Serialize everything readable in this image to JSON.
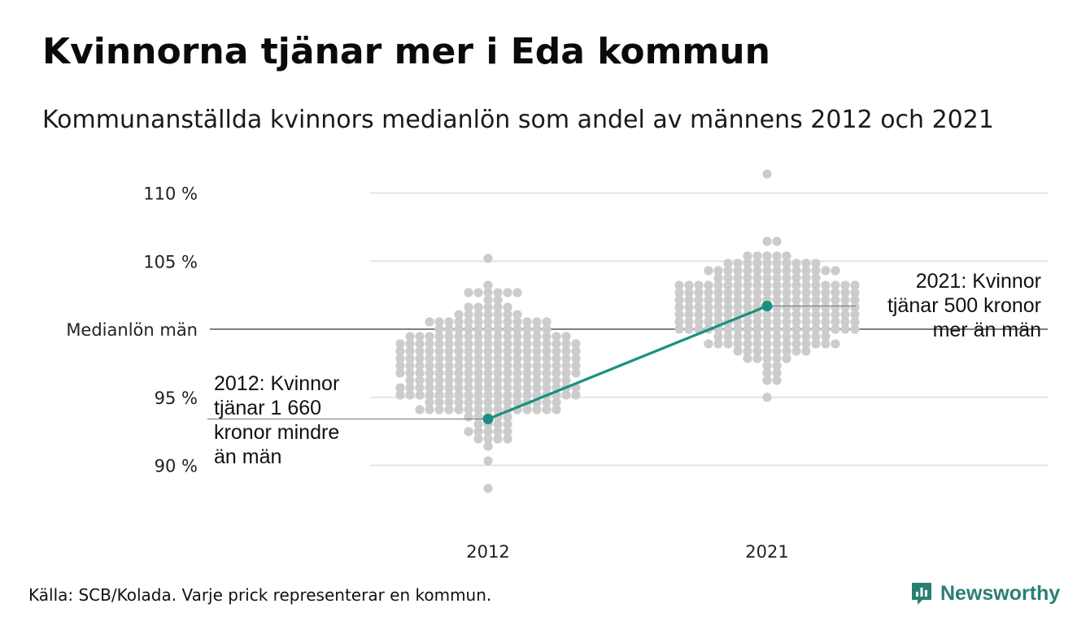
{
  "header": {
    "title": "Kvinnorna tjänar mer i Eda kommun",
    "subtitle": "Kommunanställda kvinnors medianlön som andel av männens 2012 och 2021"
  },
  "footer": {
    "source": "Källa: SCB/Kolada. Varje prick representerar en kommun.",
    "logo_text": "Newsworthy"
  },
  "colors": {
    "highlight": "#1a9080",
    "dots": "#cccccc",
    "grid": "#e4e4e4",
    "reference": "#333333",
    "logo": "#2a7f72"
  },
  "chart_data": {
    "type": "scatter",
    "title": "Kvinnorna tjänar mer i Eda kommun",
    "subtitle": "Kommunanställda kvinnors medianlön som andel av männens 2012 och 2021",
    "categories": [
      "2012",
      "2021"
    ],
    "yticks": [
      {
        "value": 110,
        "label": "110 %"
      },
      {
        "value": 105,
        "label": "105 %"
      },
      {
        "value": 100,
        "label": "Medianlön män"
      },
      {
        "value": 95,
        "label": "95 %"
      },
      {
        "value": 90,
        "label": "90 %"
      }
    ],
    "ylim": [
      86.5,
      111.5
    ],
    "reference_line": 100,
    "grid": true,
    "distributions": [
      {
        "category": "2012",
        "center": 97.5,
        "spread": 2.3,
        "min": 88.3,
        "max": 105.2
      },
      {
        "category": "2021",
        "center": 101.5,
        "spread": 2.0,
        "min": 95.0,
        "max": 111.4
      }
    ],
    "series": [
      {
        "name": "Eda kommun",
        "values": [
          93.4,
          101.7
        ]
      }
    ],
    "annotations": [
      {
        "category": "2012",
        "lines": [
          "2012: Kvinnor",
          "tjänar 1 660",
          "kronor mindre",
          "än män"
        ]
      },
      {
        "category": "2021",
        "lines": [
          "2021: Kvinnor",
          "tjänar 500 kronor",
          "mer än män"
        ]
      }
    ]
  }
}
